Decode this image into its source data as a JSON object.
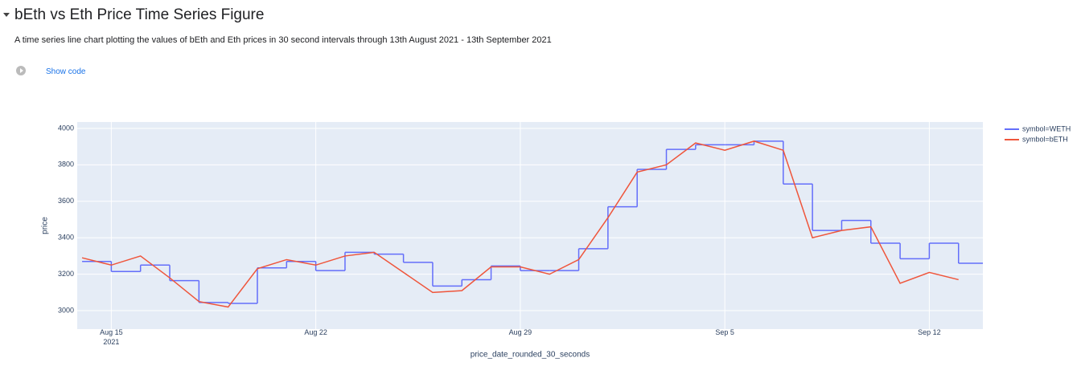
{
  "header": {
    "title": "bEth vs Eth Price Time Series Figure",
    "description": "A time series line chart plotting the values of bEth and Eth prices in 30 second intervals through 13th August 2021 - 13th September 2021",
    "show_code": "Show code"
  },
  "chart_data": {
    "type": "line",
    "xlabel": "price_date_rounded_30_seconds",
    "ylabel": "price",
    "x": [
      "2021-08-14",
      "2021-08-15",
      "2021-08-16",
      "2021-08-17",
      "2021-08-18",
      "2021-08-19",
      "2021-08-20",
      "2021-08-21",
      "2021-08-22",
      "2021-08-23",
      "2021-08-24",
      "2021-08-25",
      "2021-08-26",
      "2021-08-27",
      "2021-08-28",
      "2021-08-29",
      "2021-08-30",
      "2021-08-31",
      "2021-09-01",
      "2021-09-02",
      "2021-09-03",
      "2021-09-04",
      "2021-09-05",
      "2021-09-06",
      "2021-09-07",
      "2021-09-08",
      "2021-09-09",
      "2021-09-10",
      "2021-09-11",
      "2021-09-12",
      "2021-09-13"
    ],
    "series": [
      {
        "name": "symbol=WETH",
        "color": "#636efa",
        "shape": "step",
        "values": [
          3270,
          3215,
          3250,
          3165,
          3045,
          3040,
          3235,
          3270,
          3220,
          3320,
          3310,
          3265,
          3135,
          3170,
          3245,
          3220,
          3220,
          3340,
          3570,
          3775,
          3885,
          3910,
          3910,
          3930,
          3695,
          3440,
          3495,
          3370,
          3285,
          3370,
          3260
        ]
      },
      {
        "name": "symbol=bETH",
        "color": "#ef553b",
        "shape": "linear",
        "values": [
          3290,
          3250,
          3300,
          3180,
          3050,
          3020,
          3230,
          3280,
          3250,
          3300,
          3320,
          3210,
          3100,
          3110,
          3240,
          3240,
          3200,
          3280,
          3510,
          3760,
          3800,
          3920,
          3880,
          3930,
          3880,
          3400,
          3440,
          3460,
          3150,
          3210,
          3170
        ]
      }
    ],
    "xlim": [
      "2021-08-13T20:00",
      "2021-09-13T20:00"
    ],
    "xticks": [
      {
        "value": "2021-08-15",
        "label": "Aug 15\n2021"
      },
      {
        "value": "2021-08-22",
        "label": "Aug 22"
      },
      {
        "value": "2021-08-29",
        "label": "Aug 29"
      },
      {
        "value": "2021-09-05",
        "label": "Sep 5"
      },
      {
        "value": "2021-09-12",
        "label": "Sep 12"
      }
    ],
    "ylim": [
      2899,
      4035
    ],
    "yticks": [
      3000,
      3200,
      3400,
      3600,
      3800,
      4000
    ],
    "grid": true,
    "legend": "right",
    "background": "#e5ecf6"
  }
}
